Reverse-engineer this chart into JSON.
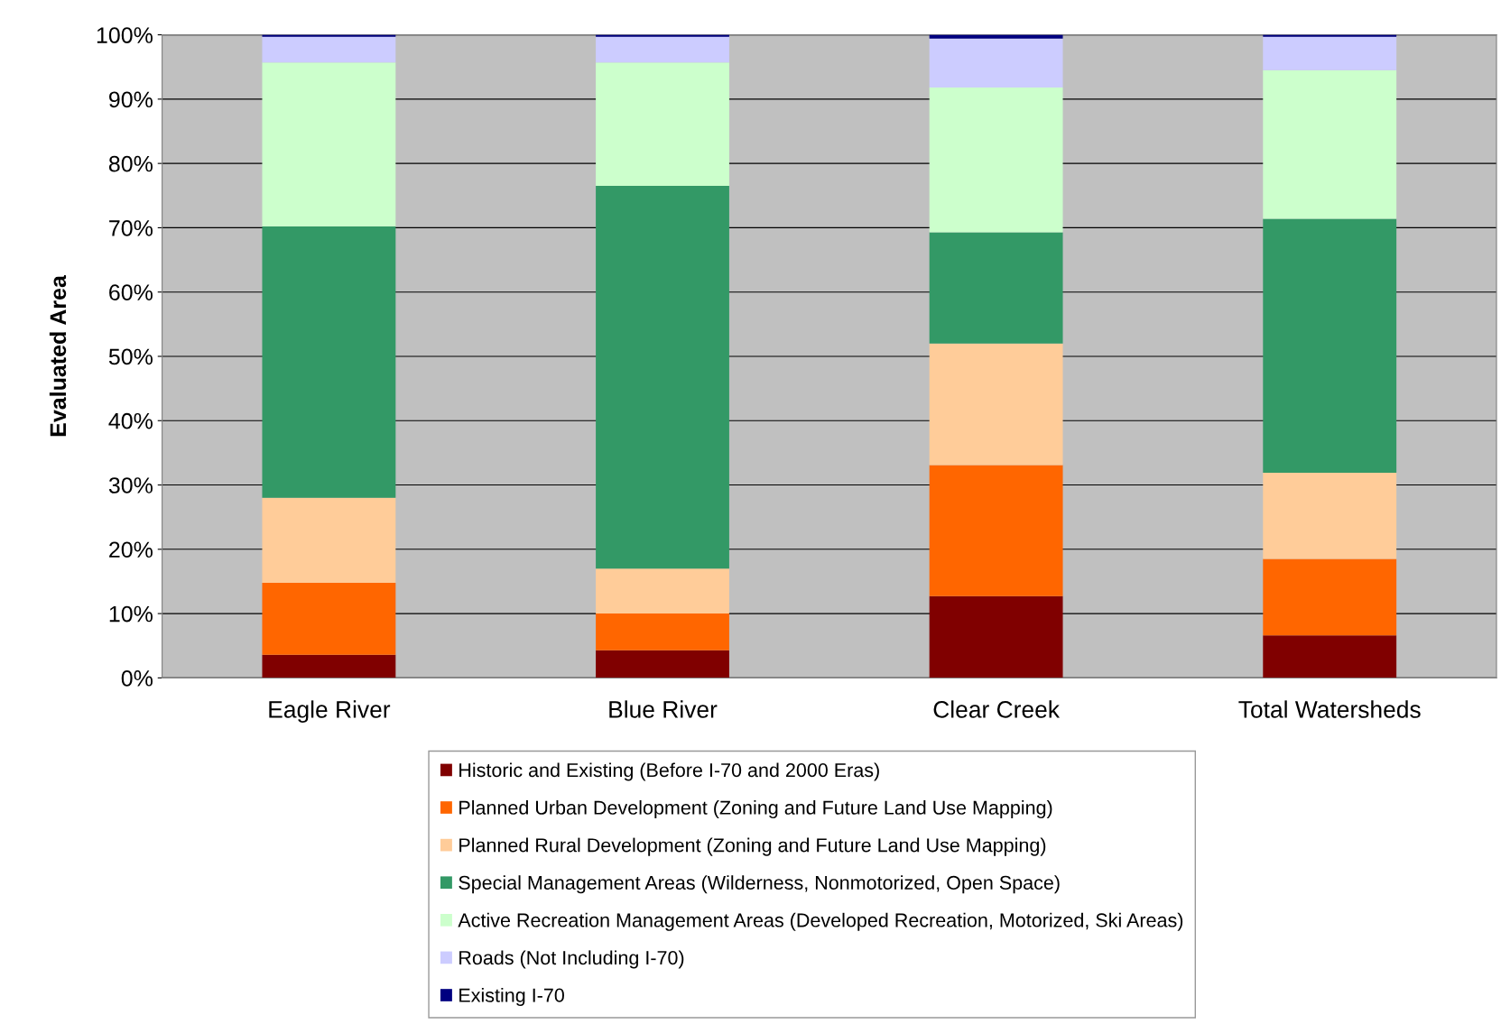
{
  "chart_data": {
    "type": "bar",
    "stacked": true,
    "ylabel": "Evaluated Area",
    "categories": [
      "Eagle River",
      "Blue River",
      "Clear Creek",
      "Total Watersheds"
    ],
    "series": [
      {
        "name": "Historic and Existing (Before I-70 and 2000 Eras)",
        "color": "#800000",
        "values": [
          3.6,
          4.3,
          12.7,
          6.6
        ]
      },
      {
        "name": "Planned Urban Development (Zoning and Future Land Use Mapping)",
        "color": "#ff6600",
        "values": [
          11.2,
          5.7,
          20.4,
          11.9
        ]
      },
      {
        "name": "Planned Rural Development (Zoning and Future Land Use Mapping)",
        "color": "#ffcc99",
        "values": [
          13.2,
          7.0,
          18.9,
          13.4
        ]
      },
      {
        "name": "Special Management Areas (Wilderness, Nonmotorized, Open Space)",
        "color": "#339966",
        "values": [
          42.2,
          59.5,
          17.3,
          39.5
        ]
      },
      {
        "name": "Active Recreation Management Areas (Developed Recreation, Motorized, Ski Areas)",
        "color": "#ccffcc",
        "values": [
          25.5,
          19.2,
          22.5,
          23.1
        ]
      },
      {
        "name": "Roads (Not Including I-70)",
        "color": "#ccccff",
        "values": [
          4.0,
          4.0,
          7.6,
          5.2
        ]
      },
      {
        "name": "Existing I-70",
        "color": "#000080",
        "values": [
          0.3,
          0.3,
          0.6,
          0.3
        ]
      }
    ],
    "ylim": [
      0,
      100
    ],
    "yticks": [
      {
        "value": 0,
        "label": "0%"
      },
      {
        "value": 10,
        "label": "10%"
      },
      {
        "value": 20,
        "label": "20%"
      },
      {
        "value": 30,
        "label": "30%"
      },
      {
        "value": 40,
        "label": "40%"
      },
      {
        "value": 50,
        "label": "50%"
      },
      {
        "value": 60,
        "label": "60%"
      },
      {
        "value": 70,
        "label": "70%"
      },
      {
        "value": 80,
        "label": "80%"
      },
      {
        "value": 90,
        "label": "90%"
      },
      {
        "value": 100,
        "label": "100%"
      }
    ],
    "grid": "y",
    "legend": "bottom"
  }
}
